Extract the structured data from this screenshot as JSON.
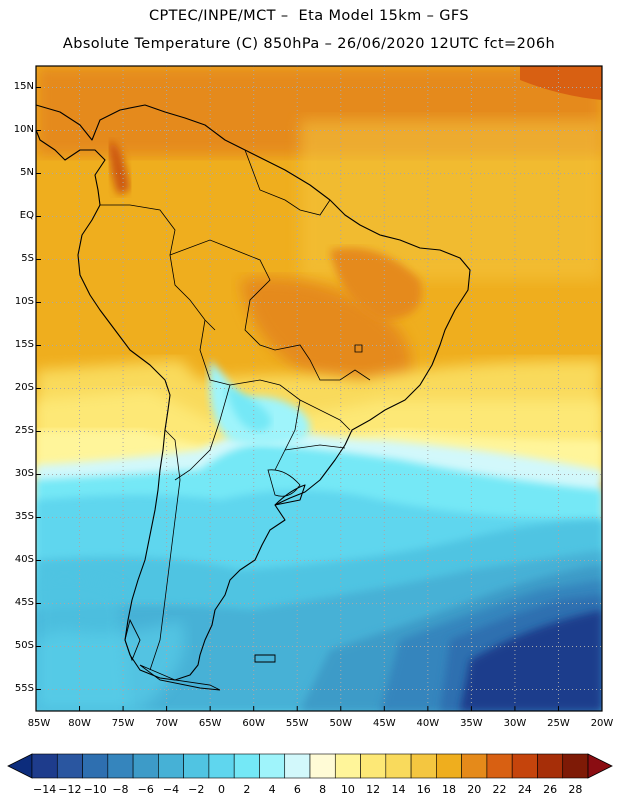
{
  "title": {
    "line1": "CPTEC/INPE/MCT –  Eta Model 15km – GFS",
    "line2": "Absolute Temperature (C) 850hPa – 26/06/2020 12UTC fct=206h"
  },
  "axes": {
    "lat_labels": [
      "15N",
      "10N",
      "5N",
      "EQ",
      "5S",
      "10S",
      "15S",
      "20S",
      "25S",
      "30S",
      "35S",
      "40S",
      "45S",
      "50S",
      "55S"
    ],
    "lon_labels": [
      "85W",
      "80W",
      "75W",
      "70W",
      "65W",
      "60W",
      "55W",
      "50W",
      "45W",
      "40W",
      "35W",
      "30W",
      "25W",
      "20W"
    ],
    "lat_range": [
      17.5,
      -57.5
    ],
    "lon_range": [
      -85,
      -20
    ],
    "grid": "dotted"
  },
  "colorbar": {
    "labels": [
      "-14",
      "-12",
      "-10",
      "-8",
      "-6",
      "-4",
      "-2",
      "0",
      "2",
      "4",
      "6",
      "8",
      "10",
      "12",
      "14",
      "16",
      "18",
      "20",
      "22",
      "24",
      "26",
      "28"
    ],
    "colors": [
      "#1e3c8c",
      "#2a56a0",
      "#2e6fb0",
      "#3585bd",
      "#3d9bc8",
      "#46b1d6",
      "#50c4e2",
      "#5fd6ee",
      "#74e8f6",
      "#9ff4fb",
      "#d2f8fb",
      "#fffbd6",
      "#fff59a",
      "#fde876",
      "#f9da5c",
      "#f4c640",
      "#efae1e",
      "#e58a1a",
      "#d86012",
      "#c5440c",
      "#a62e08",
      "#7e1a06"
    ],
    "under_color": "#0c2c7c",
    "over_color": "#8a0d12"
  }
}
